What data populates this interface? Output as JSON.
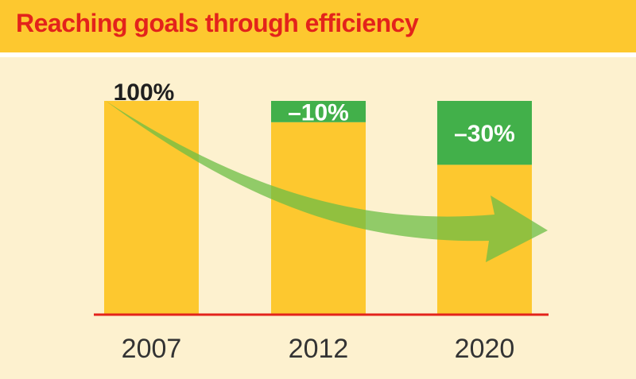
{
  "header": {
    "title": "Reaching goals through efficiency"
  },
  "colors": {
    "background": "#FDF1CF",
    "header_band": "#FDC82F",
    "title_text": "#E3231B",
    "bar_base": "#FDC82F",
    "bar_reduction": "#42B04A",
    "baseline": "#E3231B",
    "trend_arrow": "#6CBE45"
  },
  "chart_data": {
    "type": "bar",
    "title": "Reaching goals through efficiency",
    "xlabel": "",
    "ylabel": "",
    "categories": [
      "2007",
      "2012",
      "2020"
    ],
    "ylim": [
      0,
      100
    ],
    "grid": false,
    "series": [
      {
        "values": [
          100,
          90,
          70
        ]
      },
      {
        "values": [
          0,
          10,
          30
        ]
      }
    ],
    "data_labels": [
      "100%",
      "–10%",
      "–30%"
    ],
    "annotations": [
      "trend-arrow"
    ]
  }
}
